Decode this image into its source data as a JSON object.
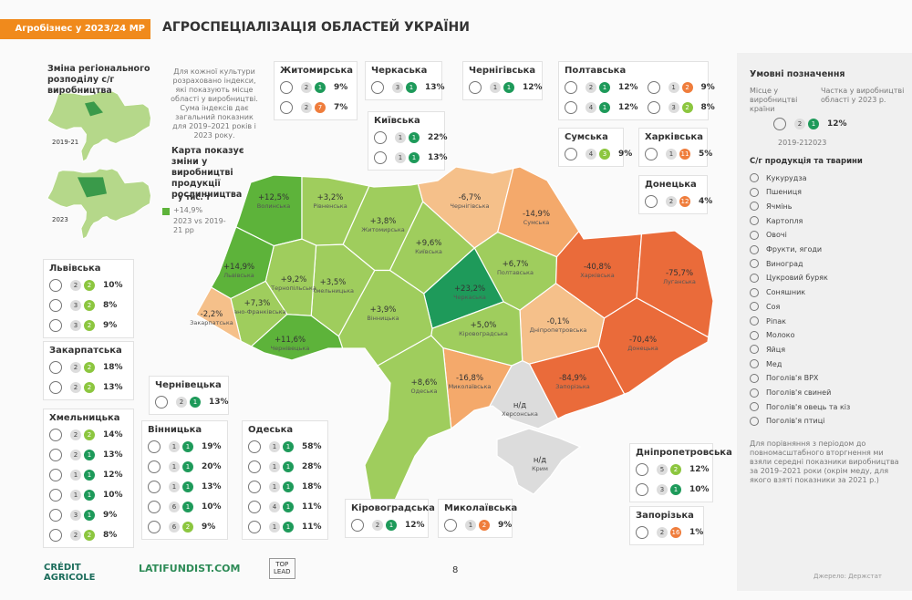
{
  "header": {
    "badge": "Агробізнес у 2023/24 МР",
    "title": "АГРОСПЕЦІАЛІЗАЦІЯ ОБЛАСТЕЙ УКРАЇНИ"
  },
  "intro": {
    "title": "Зміна регіонального розподілу с/г виробництва",
    "text": "Для кожної культури розраховано індекси, які показують місце області у виробництві. Сума індексів дає загальний показник для 2019–2021 років і 2023 року.",
    "map_labels": [
      "2019-21",
      "2023"
    ]
  },
  "map": {
    "caption": "Карта показує зміни у виробництві продукції рослинництва",
    "unit": "у тис. т",
    "scale_label": "+14,9%",
    "scale_note": "2023 vs 2019-21 рр",
    "regions": [
      {
        "name": "Волинська",
        "change": "+12,5%"
      },
      {
        "name": "Рівненська",
        "change": "+3,2%"
      },
      {
        "name": "Житомирська",
        "change": "+3,8%"
      },
      {
        "name": "Київська",
        "change": "+9,6%"
      },
      {
        "name": "Чернігівська",
        "change": "-6,7%"
      },
      {
        "name": "Сумська",
        "change": "-14,9%"
      },
      {
        "name": "Полтавська",
        "change": "+6,7%"
      },
      {
        "name": "Черкаська",
        "change": "+23,2%"
      },
      {
        "name": "Харківська",
        "change": "-40,8%"
      },
      {
        "name": "Луганська",
        "change": "-75,7%"
      },
      {
        "name": "Донецька",
        "change": "-70,4%"
      },
      {
        "name": "Дніпропетровська",
        "change": "-0,1%"
      },
      {
        "name": "Запорізька",
        "change": "-84,9%"
      },
      {
        "name": "Херсонська",
        "change": "н/д"
      },
      {
        "name": "Миколаївська",
        "change": "-16,8%"
      },
      {
        "name": "Одеська",
        "change": "+8,6%"
      },
      {
        "name": "Кіровоградська",
        "change": "+5,0%"
      },
      {
        "name": "Вінницька",
        "change": "+3,9%"
      },
      {
        "name": "Хмельницька",
        "change": "+3,5%"
      },
      {
        "name": "Тернопільська",
        "change": "+9,2%"
      },
      {
        "name": "Львівська",
        "change": "+14,9%"
      },
      {
        "name": "Івано-Франківська",
        "change": "+7,3%"
      },
      {
        "name": "Закарпатська",
        "change": "-2,2%"
      },
      {
        "name": "Чернівецька",
        "change": "+11,6%"
      },
      {
        "name": "Крим",
        "change": "н/д"
      }
    ]
  },
  "cards": [
    {
      "name": "Житомирська",
      "rows": [
        {
          "rank_2019_21": 2,
          "rank_2023": 1,
          "share": "9%"
        },
        {
          "rank_2019_21": 2,
          "rank_2023": 7,
          "share": "7%"
        }
      ]
    },
    {
      "name": "Черкаська",
      "rows": [
        {
          "rank_2019_21": 3,
          "rank_2023": 1,
          "share": "13%"
        }
      ]
    },
    {
      "name": "Чернігівська",
      "rows": [
        {
          "rank_2019_21": 1,
          "rank_2023": 1,
          "share": "12%"
        }
      ]
    },
    {
      "name": "Полтавська",
      "rows": [
        {
          "rank_2019_21": 2,
          "rank_2023": 1,
          "share": "12%"
        },
        {
          "rank_2019_21": 1,
          "rank_2023": 2,
          "share": "9%"
        },
        {
          "rank_2019_21": 4,
          "rank_2023": 1,
          "share": "12%"
        },
        {
          "rank_2019_21": 3,
          "rank_2023": 2,
          "share": "8%"
        }
      ]
    },
    {
      "name": "Київська",
      "rows": [
        {
          "rank_2019_21": 1,
          "rank_2023": 1,
          "share": "22%"
        },
        {
          "rank_2019_21": 1,
          "rank_2023": 1,
          "share": "13%"
        }
      ]
    },
    {
      "name": "Сумська",
      "rows": [
        {
          "rank_2019_21": 4,
          "rank_2023": 3,
          "share": "9%"
        }
      ]
    },
    {
      "name": "Харківська",
      "rows": [
        {
          "rank_2019_21": 1,
          "rank_2023": 11,
          "share": "5%"
        }
      ]
    },
    {
      "name": "Донецька",
      "rows": [
        {
          "rank_2019_21": 2,
          "rank_2023": 12,
          "share": "4%"
        }
      ]
    },
    {
      "name": "Львівська",
      "rows": [
        {
          "rank_2019_21": 2,
          "rank_2023": 2,
          "share": "10%"
        },
        {
          "rank_2019_21": 3,
          "rank_2023": 2,
          "share": "8%"
        },
        {
          "rank_2019_21": 3,
          "rank_2023": 2,
          "share": "9%"
        }
      ]
    },
    {
      "name": "Закарпатська",
      "rows": [
        {
          "rank_2019_21": 2,
          "rank_2023": 2,
          "share": "18%"
        },
        {
          "rank_2019_21": 2,
          "rank_2023": 2,
          "share": "13%"
        }
      ]
    },
    {
      "name": "Чернівецька",
      "rows": [
        {
          "rank_2019_21": 2,
          "rank_2023": 1,
          "share": "13%"
        }
      ]
    },
    {
      "name": "Хмельницька",
      "rows": [
        {
          "rank_2019_21": 2,
          "rank_2023": 2,
          "share": "14%"
        },
        {
          "rank_2019_21": 2,
          "rank_2023": 1,
          "share": "13%"
        },
        {
          "rank_2019_21": 1,
          "rank_2023": 1,
          "share": "12%"
        },
        {
          "rank_2019_21": 1,
          "rank_2023": 1,
          "share": "10%"
        },
        {
          "rank_2019_21": 3,
          "rank_2023": 1,
          "share": "9%"
        },
        {
          "rank_2019_21": 2,
          "rank_2023": 2,
          "share": "8%"
        }
      ]
    },
    {
      "name": "Вінницька",
      "rows": [
        {
          "rank_2019_21": 1,
          "rank_2023": 1,
          "share": "19%"
        },
        {
          "rank_2019_21": 1,
          "rank_2023": 1,
          "share": "20%"
        },
        {
          "rank_2019_21": 1,
          "rank_2023": 1,
          "share": "13%"
        },
        {
          "rank_2019_21": 6,
          "rank_2023": 1,
          "share": "10%"
        },
        {
          "rank_2019_21": 6,
          "rank_2023": 2,
          "share": "9%"
        }
      ]
    },
    {
      "name": "Одеська",
      "rows": [
        {
          "rank_2019_21": 1,
          "rank_2023": 1,
          "share": "58%"
        },
        {
          "rank_2019_21": 1,
          "rank_2023": 1,
          "share": "28%"
        },
        {
          "rank_2019_21": 1,
          "rank_2023": 1,
          "share": "18%"
        },
        {
          "rank_2019_21": 4,
          "rank_2023": 1,
          "share": "11%"
        },
        {
          "rank_2019_21": 1,
          "rank_2023": 1,
          "share": "11%"
        }
      ]
    },
    {
      "name": "Кіровоградська",
      "rows": [
        {
          "rank_2019_21": 2,
          "rank_2023": 1,
          "share": "12%"
        }
      ]
    },
    {
      "name": "Миколаївська",
      "rows": [
        {
          "rank_2019_21": 1,
          "rank_2023": 2,
          "share": "9%"
        }
      ]
    },
    {
      "name": "Дніпропетровська",
      "rows": [
        {
          "rank_2019_21": 5,
          "rank_2023": 2,
          "share": "12%"
        },
        {
          "rank_2019_21": 3,
          "rank_2023": 1,
          "share": "10%"
        }
      ]
    },
    {
      "name": "Запорізька",
      "rows": [
        {
          "rank_2019_21": 2,
          "rank_2023": 16,
          "share": "1%"
        }
      ]
    }
  ],
  "legend": {
    "title": "Умовні позначення",
    "rank_label": "Місце у виробництві країни",
    "share_label": "Частка у виробництві області у 2023 р.",
    "example": {
      "rank_2019_21": 2,
      "rank_2023": 1,
      "share": "12%"
    },
    "period_labels": [
      "2019-21",
      "2023"
    ],
    "products_title": "С/г продукція та тварини",
    "products": [
      "Кукурудза",
      "Пшениця",
      "Ячмінь",
      "Картопля",
      "Овочі",
      "Фрукти, ягоди",
      "Виноград",
      "Цукровий буряк",
      "Соняшник",
      "Соя",
      "Ріпак",
      "Молоко",
      "Яйця",
      "Мед",
      "Поголів'я ВРХ",
      "Поголів'я свиней",
      "Поголів'я овець та кіз",
      "Поголів'я птиці"
    ],
    "note": "Для порівняння з періодом до повномасштабного вторгнення ми взяли середні показники виробництва за 2019–2021 роки (окрім меду, для якого взяті показники за 2021 р.)"
  },
  "footer": {
    "logo1": "CRÉDIT AGRICOLE",
    "logo2": "LATIFUNDIST.COM",
    "logo3": [
      "TOP",
      "LEAD"
    ],
    "page": "8",
    "source": "Джерело: Держстат"
  }
}
